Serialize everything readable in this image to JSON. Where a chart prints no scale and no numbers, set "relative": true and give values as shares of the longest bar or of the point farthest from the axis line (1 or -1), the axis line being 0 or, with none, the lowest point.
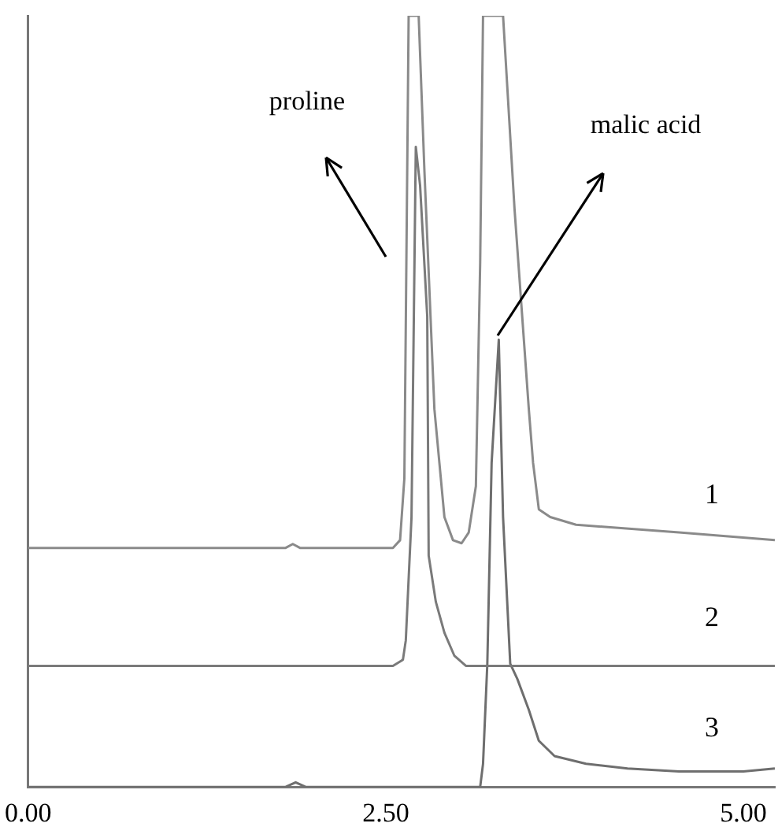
{
  "chart_data": {
    "type": "line",
    "relative": true,
    "xlim": [
      0,
      5.22
    ],
    "xticks": [
      {
        "value": 0,
        "label": "0.00"
      },
      {
        "value": 2.5,
        "label": "2.50"
      },
      {
        "value": 5,
        "label": "5.00"
      }
    ],
    "series": [
      {
        "name": "1",
        "color": "#8a8a8a",
        "x": [
          0,
          1.8,
          1.85,
          1.9,
          2.55,
          2.6,
          2.63,
          2.66,
          2.7,
          2.73,
          2.77,
          2.84,
          2.91,
          2.97,
          3.03,
          3.08,
          3.13,
          3.16,
          3.18,
          3.32,
          3.4,
          3.5,
          3.53,
          3.57,
          3.65,
          3.83,
          4.2,
          4.55,
          5.22
        ],
        "values": [
          0.31,
          0.31,
          0.315,
          0.31,
          0.31,
          0.32,
          0.4,
          1,
          1,
          1,
          0.8,
          0.49,
          0.35,
          0.32,
          0.316,
          0.33,
          0.39,
          0.68,
          1,
          1,
          0.75,
          0.49,
          0.42,
          0.36,
          0.35,
          0.34,
          0.335,
          0.33,
          0.32
        ]
      },
      {
        "name": "2",
        "color": "#7a7a7a",
        "x": [
          0,
          2.55,
          2.62,
          2.64,
          2.68,
          2.71,
          2.74,
          2.79,
          2.8,
          2.85,
          2.91,
          2.98,
          3.06,
          5.22
        ],
        "values": [
          0.157,
          0.157,
          0.165,
          0.19,
          0.35,
          0.83,
          0.78,
          0.61,
          0.3,
          0.24,
          0.2,
          0.17,
          0.157,
          0.157
        ]
      },
      {
        "name": "3",
        "color": "#6e6e6e",
        "x": [
          0,
          1.8,
          1.87,
          1.94,
          3.16,
          3.18,
          3.21,
          3.24,
          3.29,
          3.32,
          3.37,
          3.42,
          3.5,
          3.57,
          3.68,
          3.9,
          4.19,
          4.55,
          5.0,
          5.22
        ],
        "values": [
          0,
          0,
          0.006,
          0,
          0,
          0.03,
          0.16,
          0.42,
          0.58,
          0.35,
          0.16,
          0.14,
          0.1,
          0.06,
          0.04,
          0.03,
          0.024,
          0.02,
          0.02,
          0.024
        ]
      }
    ],
    "annotations": [
      "proline",
      "malic acid"
    ]
  }
}
